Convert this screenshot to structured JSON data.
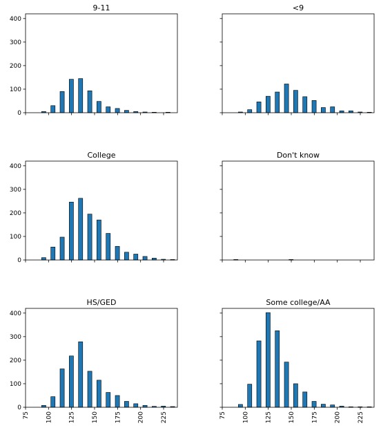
{
  "figure": {
    "sharex": true,
    "sharey": true,
    "rows": 3,
    "cols": 2
  },
  "chart_data": [
    {
      "type": "bar",
      "title": "9-11",
      "color": "#1f77b4",
      "x": [
        85,
        90,
        95,
        100,
        105,
        110,
        115,
        120,
        125,
        130,
        135,
        140,
        145,
        150,
        155,
        160,
        165,
        170,
        175,
        180,
        185,
        190,
        195,
        200,
        205,
        210,
        215,
        220,
        225,
        230,
        235
      ],
      "values": [
        0,
        0,
        5,
        0,
        30,
        0,
        90,
        0,
        142,
        0,
        145,
        0,
        93,
        0,
        48,
        0,
        25,
        0,
        18,
        0,
        10,
        0,
        5,
        0,
        3,
        0,
        2,
        0,
        0,
        2,
        0
      ],
      "xlim": [
        75,
        240
      ],
      "ylim": [
        0,
        420
      ],
      "xticks": [
        75,
        100,
        125,
        150,
        175,
        200,
        225
      ],
      "yticks": [
        0,
        100,
        200,
        300,
        400
      ],
      "show_xticklabels": false,
      "show_yticklabels": true
    },
    {
      "type": "bar",
      "title": "<9",
      "color": "#1f77b4",
      "x": [
        85,
        90,
        95,
        100,
        105,
        110,
        115,
        120,
        125,
        130,
        135,
        140,
        145,
        150,
        155,
        160,
        165,
        170,
        175,
        180,
        185,
        190,
        195,
        200,
        205,
        210,
        215,
        220,
        225,
        230,
        235
      ],
      "values": [
        0,
        0,
        3,
        0,
        13,
        0,
        46,
        0,
        70,
        0,
        88,
        0,
        122,
        0,
        95,
        0,
        68,
        0,
        52,
        0,
        22,
        0,
        25,
        0,
        8,
        0,
        8,
        0,
        3,
        0,
        2
      ],
      "xlim": [
        75,
        240
      ],
      "ylim": [
        0,
        420
      ],
      "xticks": [
        75,
        100,
        125,
        150,
        175,
        200,
        225
      ],
      "yticks": [
        0,
        100,
        200,
        300,
        400
      ],
      "show_xticklabels": false,
      "show_yticklabels": false
    },
    {
      "type": "bar",
      "title": "College",
      "color": "#1f77b4",
      "x": [
        85,
        90,
        95,
        100,
        105,
        110,
        115,
        120,
        125,
        130,
        135,
        140,
        145,
        150,
        155,
        160,
        165,
        170,
        175,
        180,
        185,
        190,
        195,
        200,
        205,
        210,
        215,
        220,
        225,
        230,
        235
      ],
      "values": [
        0,
        0,
        10,
        0,
        55,
        0,
        97,
        0,
        246,
        0,
        262,
        0,
        195,
        0,
        170,
        0,
        113,
        0,
        58,
        0,
        33,
        0,
        25,
        0,
        15,
        0,
        8,
        0,
        3,
        0,
        2
      ],
      "xlim": [
        75,
        240
      ],
      "ylim": [
        0,
        420
      ],
      "xticks": [
        75,
        100,
        125,
        150,
        175,
        200,
        225
      ],
      "yticks": [
        0,
        100,
        200,
        300,
        400
      ],
      "show_xticklabels": false,
      "show_yticklabels": true
    },
    {
      "type": "bar",
      "title": "Don't know",
      "color": "#1f77b4",
      "x": [
        90,
        150
      ],
      "values": [
        2,
        2
      ],
      "xlim": [
        75,
        240
      ],
      "ylim": [
        0,
        420
      ],
      "xticks": [
        75,
        100,
        125,
        150,
        175,
        200,
        225
      ],
      "yticks": [
        0,
        100,
        200,
        300,
        400
      ],
      "show_xticklabels": false,
      "show_yticklabels": false
    },
    {
      "type": "bar",
      "title": "HS/GED",
      "color": "#1f77b4",
      "x": [
        85,
        90,
        95,
        100,
        105,
        110,
        115,
        120,
        125,
        130,
        135,
        140,
        145,
        150,
        155,
        160,
        165,
        170,
        175,
        180,
        185,
        190,
        195,
        200,
        205,
        210,
        215,
        220,
        225,
        230,
        235
      ],
      "values": [
        0,
        0,
        8,
        0,
        45,
        0,
        163,
        0,
        218,
        0,
        278,
        0,
        153,
        0,
        115,
        0,
        63,
        0,
        50,
        0,
        25,
        0,
        15,
        0,
        8,
        0,
        4,
        0,
        5,
        0,
        3
      ],
      "xlim": [
        75,
        240
      ],
      "ylim": [
        0,
        420
      ],
      "xticks": [
        75,
        100,
        125,
        150,
        175,
        200,
        225
      ],
      "yticks": [
        0,
        100,
        200,
        300,
        400
      ],
      "show_xticklabels": true,
      "show_yticklabels": true
    },
    {
      "type": "bar",
      "title": "Some college/AA",
      "color": "#1f77b4",
      "x": [
        85,
        90,
        95,
        100,
        105,
        110,
        115,
        120,
        125,
        130,
        135,
        140,
        145,
        150,
        155,
        160,
        165,
        170,
        175,
        180,
        185,
        190,
        195,
        200,
        205,
        210,
        215,
        220,
        225,
        230,
        235
      ],
      "values": [
        0,
        0,
        12,
        0,
        98,
        0,
        282,
        0,
        402,
        0,
        325,
        0,
        192,
        0,
        100,
        0,
        65,
        0,
        25,
        0,
        13,
        0,
        10,
        0,
        5,
        0,
        2,
        0,
        2,
        0,
        2
      ],
      "xlim": [
        75,
        240
      ],
      "ylim": [
        0,
        420
      ],
      "xticks": [
        75,
        100,
        125,
        150,
        175,
        200,
        225
      ],
      "yticks": [
        0,
        100,
        200,
        300,
        400
      ],
      "show_xticklabels": true,
      "show_yticklabels": false
    }
  ]
}
